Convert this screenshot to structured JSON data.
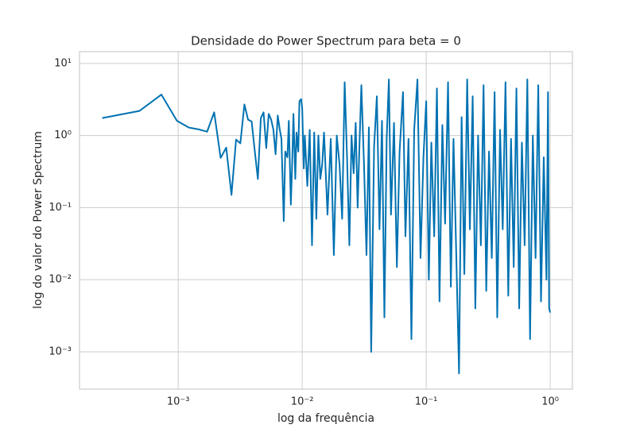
{
  "chart_data": {
    "type": "line",
    "title": "Densidade do Power Spectrum para beta = 0",
    "xlabel": "log da frequência",
    "ylabel": "log do valor do Power Spectrum",
    "xscale": "log",
    "yscale": "log",
    "grid": true,
    "color": "#0072B2",
    "xlim": [
      0.00016,
      1.51
    ],
    "ylim": [
      0.000303,
      14.6
    ],
    "xticks": [
      {
        "value": 0.001,
        "label": "10⁻³"
      },
      {
        "value": 0.01,
        "label": "10⁻²"
      },
      {
        "value": 0.1,
        "label": "10⁻¹"
      },
      {
        "value": 1,
        "label": "10⁰"
      }
    ],
    "yticks": [
      {
        "value": 0.001,
        "label": "10⁻³"
      },
      {
        "value": 0.01,
        "label": "10⁻²"
      },
      {
        "value": 0.1,
        "label": "10⁻¹"
      },
      {
        "value": 1,
        "label": "10⁰"
      },
      {
        "value": 10,
        "label": "10¹"
      }
    ],
    "x": [
      0.000244,
      0.000488,
      0.000732,
      0.000977,
      0.00122,
      0.00146,
      0.00171,
      0.00195,
      0.0022,
      0.00244,
      0.00269,
      0.00293,
      0.00317,
      0.00342,
      0.00366,
      0.00391,
      0.00415,
      0.00439,
      0.00464,
      0.00488,
      0.00513,
      0.00537,
      0.00562,
      0.00586,
      0.0061,
      0.00635,
      0.0066,
      0.0068,
      0.0071,
      0.0073,
      0.0076,
      0.0078,
      0.0081,
      0.0083,
      0.0085,
      0.0088,
      0.009,
      0.0093,
      0.0095,
      0.0098,
      0.01,
      0.0103,
      0.0105,
      0.011,
      0.0115,
      0.012,
      0.0125,
      0.013,
      0.0135,
      0.014,
      0.0145,
      0.015,
      0.016,
      0.017,
      0.018,
      0.019,
      0.02,
      0.021,
      0.022,
      0.023,
      0.024,
      0.025,
      0.026,
      0.027,
      0.028,
      0.029,
      0.03,
      0.0315,
      0.033,
      0.0345,
      0.036,
      0.038,
      0.04,
      0.042,
      0.044,
      0.046,
      0.048,
      0.05,
      0.052,
      0.055,
      0.058,
      0.061,
      0.065,
      0.068,
      0.072,
      0.076,
      0.08,
      0.085,
      0.09,
      0.095,
      0.1,
      0.105,
      0.11,
      0.116,
      0.122,
      0.128,
      0.135,
      0.142,
      0.15,
      0.158,
      0.166,
      0.175,
      0.184,
      0.193,
      0.203,
      0.214,
      0.225,
      0.237,
      0.249,
      0.262,
      0.276,
      0.29,
      0.305,
      0.321,
      0.338,
      0.356,
      0.374,
      0.394,
      0.414,
      0.436,
      0.459,
      0.483,
      0.508,
      0.534,
      0.562,
      0.591,
      0.622,
      0.654,
      0.688,
      0.724,
      0.762,
      0.801,
      0.843,
      0.887,
      0.933,
      0.96,
      0.98,
      1
    ],
    "values": [
      1.75,
      2.2,
      3.7,
      1.6,
      1.29,
      1.22,
      1.13,
      2.1,
      0.49,
      0.68,
      0.15,
      0.88,
      0.78,
      2.7,
      1.66,
      1.57,
      0.6,
      0.25,
      1.75,
      2.1,
      0.67,
      2.0,
      1.66,
      1.2,
      0.55,
      1.9,
      1.2,
      0.9,
      0.065,
      0.6,
      0.5,
      1.6,
      0.11,
      0.4,
      2.0,
      0.25,
      1.1,
      0.6,
      3.0,
      3.2,
      2.4,
      0.35,
      1.0,
      0.2,
      1.2,
      0.03,
      1.1,
      0.07,
      1.0,
      0.25,
      0.4,
      1.1,
      0.08,
      0.9,
      0.022,
      1.0,
      0.4,
      0.07,
      5.5,
      0.5,
      0.03,
      1.0,
      0.3,
      1.5,
      0.1,
      0.8,
      5.0,
      0.4,
      0.022,
      1.3,
      0.001,
      0.7,
      3.5,
      0.05,
      1.6,
      0.003,
      0.9,
      6.0,
      0.08,
      1.5,
      0.015,
      0.6,
      4.0,
      0.04,
      0.9,
      0.0015,
      1.2,
      6.0,
      0.02,
      0.5,
      3.0,
      0.01,
      0.8,
      0.04,
      4.5,
      0.005,
      1.4,
      0.06,
      5.5,
      0.008,
      0.9,
      0.02,
      0.0005,
      1.8,
      0.012,
      6.0,
      0.05,
      3.5,
      0.004,
      1.0,
      0.03,
      5.0,
      0.007,
      0.6,
      0.02,
      4.0,
      0.003,
      1.2,
      0.05,
      5.5,
      0.006,
      0.9,
      0.015,
      4.5,
      0.004,
      0.8,
      0.03,
      6.0,
      0.0015,
      1.0,
      0.02,
      5.0,
      0.005,
      0.5,
      0.01,
      4.0,
      0.004,
      0.0035
    ]
  }
}
